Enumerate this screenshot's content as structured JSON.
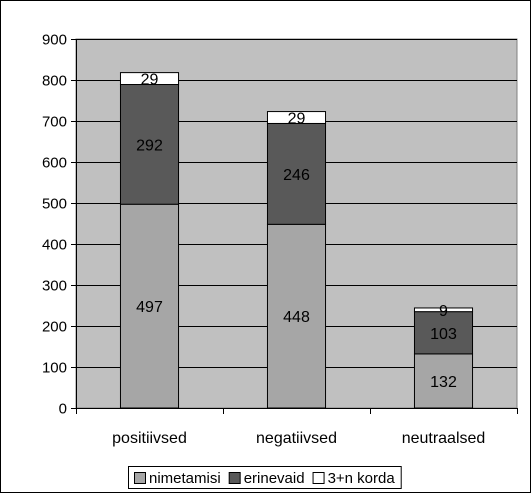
{
  "chart_data": {
    "type": "bar",
    "stacked": true,
    "categories": [
      "positiivsed",
      "negatiivsed",
      "neutraalsed"
    ],
    "series": [
      {
        "name": "nimetamisi",
        "values": [
          497,
          448,
          132
        ],
        "color": "#a6a6a6"
      },
      {
        "name": "erinevaid",
        "values": [
          292,
          246,
          103
        ],
        "color": "#595959"
      },
      {
        "name": "3+n korda",
        "values": [
          29,
          29,
          9
        ],
        "color": "#ffffff"
      }
    ],
    "ylim": [
      0,
      900
    ],
    "yticks": [
      0,
      100,
      200,
      300,
      400,
      500,
      600,
      700,
      800,
      900
    ],
    "grid": true,
    "legend_position": "bottom",
    "plot_background": "#c0c0c0"
  }
}
